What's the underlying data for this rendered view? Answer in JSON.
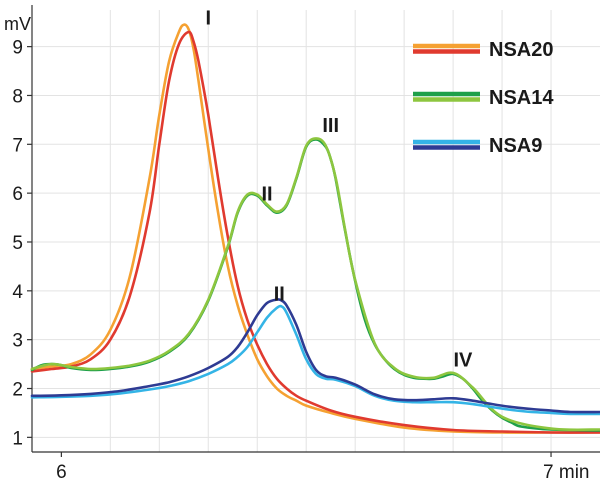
{
  "chart_data": {
    "type": "line",
    "y_unit": "mV",
    "x_tick_labels": [
      "6",
      "7 min"
    ],
    "xlim": [
      5.94,
      7.1
    ],
    "ylim": [
      0.7,
      9.75
    ],
    "y_ticks": [
      1,
      2,
      3,
      4,
      5,
      6,
      7,
      8,
      9
    ],
    "x_ticks": [
      6,
      7
    ],
    "x_minor_grid": [
      6.1,
      6.2,
      6.3,
      6.4,
      6.5,
      6.6,
      6.7,
      6.8,
      6.9,
      7.0
    ],
    "grid": true,
    "legend_position": "top-right",
    "legend": [
      {
        "label": "NSA20",
        "colors": [
          "#f5a132",
          "#e03a2f"
        ]
      },
      {
        "label": "NSA14",
        "colors": [
          "#1ea04a",
          "#8dc63f"
        ]
      },
      {
        "label": "NSA9",
        "colors": [
          "#34b4e6",
          "#2e3b93"
        ]
      }
    ],
    "peak_labels": [
      {
        "text": "I",
        "x": 6.3,
        "y": 9.45
      },
      {
        "text": "II",
        "x": 6.42,
        "y": 5.85
      },
      {
        "text": "III",
        "x": 6.55,
        "y": 7.25
      },
      {
        "text": "II",
        "x": 6.445,
        "y": 3.8
      },
      {
        "text": "IV",
        "x": 6.82,
        "y": 2.45
      }
    ],
    "series": [
      {
        "color": "#f5a132",
        "x": [
          5.94,
          5.98,
          6.02,
          6.06,
          6.1,
          6.14,
          6.18,
          6.2,
          6.22,
          6.24,
          6.25,
          6.26,
          6.27,
          6.28,
          6.3,
          6.32,
          6.34,
          6.36,
          6.38,
          6.4,
          6.42,
          6.44,
          6.46,
          6.48,
          6.5,
          6.55,
          6.6,
          6.7,
          6.8,
          6.9,
          7.0,
          7.1
        ],
        "y": [
          2.4,
          2.45,
          2.5,
          2.7,
          3.2,
          4.3,
          6.3,
          7.6,
          8.7,
          9.3,
          9.45,
          9.35,
          8.95,
          8.3,
          6.9,
          5.6,
          4.5,
          3.7,
          3.1,
          2.6,
          2.25,
          2.0,
          1.85,
          1.75,
          1.65,
          1.5,
          1.38,
          1.2,
          1.12,
          1.1,
          1.1,
          1.1
        ]
      },
      {
        "color": "#e03a2f",
        "x": [
          5.94,
          5.98,
          6.02,
          6.06,
          6.1,
          6.14,
          6.18,
          6.2,
          6.22,
          6.24,
          6.26,
          6.27,
          6.28,
          6.3,
          6.32,
          6.34,
          6.36,
          6.38,
          6.4,
          6.42,
          6.44,
          6.46,
          6.48,
          6.5,
          6.55,
          6.6,
          6.7,
          6.8,
          6.9,
          7.0,
          7.1
        ],
        "y": [
          2.35,
          2.4,
          2.45,
          2.6,
          3.0,
          3.9,
          5.6,
          7.0,
          8.3,
          9.05,
          9.3,
          9.1,
          8.7,
          7.6,
          6.3,
          5.1,
          4.1,
          3.4,
          2.9,
          2.5,
          2.2,
          2.0,
          1.85,
          1.75,
          1.55,
          1.42,
          1.25,
          1.15,
          1.12,
          1.1,
          1.1
        ]
      },
      {
        "color": "#1ea04a",
        "x": [
          5.94,
          5.96,
          5.98,
          6.0,
          6.02,
          6.06,
          6.1,
          6.14,
          6.18,
          6.22,
          6.26,
          6.3,
          6.34,
          6.36,
          6.38,
          6.4,
          6.42,
          6.44,
          6.46,
          6.48,
          6.5,
          6.52,
          6.54,
          6.55,
          6.56,
          6.58,
          6.6,
          6.62,
          6.64,
          6.66,
          6.68,
          6.7,
          6.72,
          6.74,
          6.76,
          6.78,
          6.8,
          6.82,
          6.84,
          6.86,
          6.88,
          6.9,
          6.92,
          6.94,
          7.0,
          7.1
        ],
        "y": [
          2.38,
          2.48,
          2.5,
          2.48,
          2.42,
          2.38,
          2.4,
          2.45,
          2.55,
          2.75,
          3.1,
          3.8,
          4.9,
          5.6,
          5.95,
          5.95,
          5.75,
          5.6,
          5.75,
          6.3,
          6.95,
          7.1,
          6.95,
          6.7,
          6.3,
          5.2,
          4.2,
          3.4,
          2.9,
          2.6,
          2.4,
          2.28,
          2.22,
          2.2,
          2.2,
          2.25,
          2.3,
          2.2,
          2.0,
          1.75,
          1.55,
          1.4,
          1.3,
          1.22,
          1.16,
          1.14
        ]
      },
      {
        "color": "#8dc63f",
        "x": [
          5.94,
          5.98,
          6.02,
          6.06,
          6.1,
          6.14,
          6.18,
          6.22,
          6.26,
          6.3,
          6.34,
          6.36,
          6.38,
          6.4,
          6.42,
          6.44,
          6.46,
          6.48,
          6.5,
          6.52,
          6.54,
          6.56,
          6.58,
          6.6,
          6.64,
          6.68,
          6.72,
          6.76,
          6.8,
          6.84,
          6.9,
          7.0,
          7.1
        ],
        "y": [
          2.4,
          2.5,
          2.44,
          2.4,
          2.42,
          2.47,
          2.57,
          2.77,
          3.12,
          3.82,
          4.92,
          5.62,
          5.97,
          5.97,
          5.77,
          5.62,
          5.77,
          6.32,
          6.97,
          7.12,
          6.97,
          6.32,
          5.22,
          4.22,
          2.92,
          2.42,
          2.24,
          2.22,
          2.32,
          2.02,
          1.42,
          1.18,
          1.16
        ]
      },
      {
        "color": "#34b4e6",
        "x": [
          5.94,
          6.0,
          6.06,
          6.12,
          6.18,
          6.22,
          6.26,
          6.3,
          6.34,
          6.36,
          6.38,
          6.4,
          6.42,
          6.44,
          6.45,
          6.46,
          6.48,
          6.5,
          6.52,
          6.54,
          6.56,
          6.6,
          6.64,
          6.68,
          6.72,
          6.76,
          6.8,
          6.84,
          6.88,
          6.92,
          6.96,
          7.0,
          7.04,
          7.1
        ],
        "y": [
          1.82,
          1.83,
          1.85,
          1.9,
          1.98,
          2.05,
          2.15,
          2.3,
          2.5,
          2.65,
          2.85,
          3.15,
          3.45,
          3.65,
          3.68,
          3.55,
          3.1,
          2.6,
          2.3,
          2.2,
          2.18,
          2.05,
          1.85,
          1.75,
          1.72,
          1.72,
          1.72,
          1.68,
          1.62,
          1.56,
          1.52,
          1.5,
          1.48,
          1.48
        ]
      },
      {
        "color": "#2e3b93",
        "x": [
          5.94,
          6.0,
          6.06,
          6.12,
          6.18,
          6.22,
          6.26,
          6.3,
          6.34,
          6.36,
          6.38,
          6.4,
          6.42,
          6.44,
          6.45,
          6.46,
          6.48,
          6.5,
          6.52,
          6.54,
          6.56,
          6.6,
          6.64,
          6.68,
          6.72,
          6.76,
          6.8,
          6.84,
          6.88,
          6.92,
          6.96,
          7.0,
          7.04,
          7.1
        ],
        "y": [
          1.85,
          1.86,
          1.89,
          1.95,
          2.05,
          2.13,
          2.25,
          2.42,
          2.65,
          2.85,
          3.15,
          3.5,
          3.75,
          3.82,
          3.8,
          3.7,
          3.3,
          2.75,
          2.38,
          2.25,
          2.22,
          2.08,
          1.88,
          1.78,
          1.76,
          1.78,
          1.8,
          1.75,
          1.68,
          1.62,
          1.58,
          1.55,
          1.52,
          1.52
        ]
      }
    ]
  }
}
